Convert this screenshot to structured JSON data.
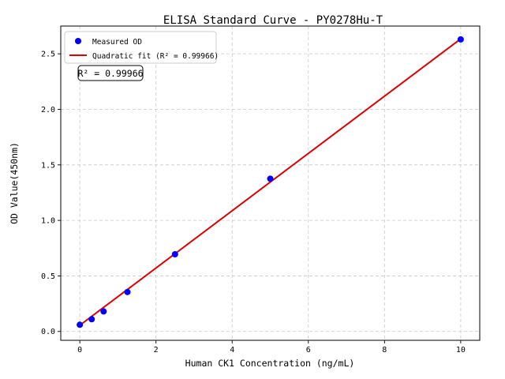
{
  "chart_data": {
    "type": "scatter",
    "title": "ELISA Standard Curve - PY0278Hu-T",
    "xlabel": "Human CK1 Concentration (ng/mL)",
    "ylabel": "OD Value(450nm)",
    "xlim": [
      -0.5,
      10.5
    ],
    "ylim": [
      -0.08,
      2.75
    ],
    "xticks": [
      0,
      2,
      4,
      6,
      8,
      10
    ],
    "xtick_labels": [
      "0",
      "2",
      "4",
      "6",
      "8",
      "10"
    ],
    "yticks": [
      0.0,
      0.5,
      1.0,
      1.5,
      2.0,
      2.5
    ],
    "ytick_labels": [
      "0.0",
      "0.5",
      "1.0",
      "1.5",
      "2.0",
      "2.5"
    ],
    "grid": true,
    "legend_position": "top-left",
    "series": [
      {
        "name": "Measured OD",
        "kind": "scatter",
        "color": "#0000ff",
        "x": [
          0,
          0.3125,
          0.625,
          1.25,
          2.5,
          5,
          10
        ],
        "y": [
          0.06,
          0.11,
          0.18,
          0.355,
          0.695,
          1.375,
          2.63
        ]
      },
      {
        "name": "Quadratic fit (R² = 0.99966)",
        "kind": "line",
        "color": "#dd0000",
        "x": [
          0,
          10
        ],
        "y": [
          0.055,
          2.635
        ]
      }
    ],
    "annotation": "R² = 0.99966"
  }
}
